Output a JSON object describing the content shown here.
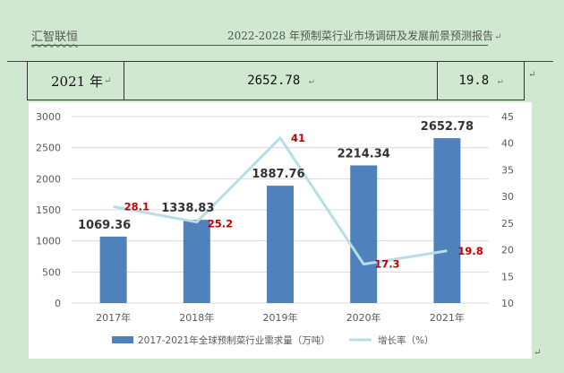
{
  "header": {
    "brand": "汇智联恒",
    "report_title": "2022-2028 年预制菜行业市场调研及发展前景预测报告",
    "para_mark": "↵"
  },
  "table": {
    "year": "2021 年",
    "volume": "2652.78",
    "rate": "19.8",
    "cell_mark": "↵",
    "row_end_mark": "↵"
  },
  "chart_data": {
    "type": "bar+line",
    "categories": [
      "2017年",
      "2018年",
      "2019年",
      "2020年",
      "2021年"
    ],
    "series": [
      {
        "name": "2017-2021年全球预制菜行业需求量（万吨）",
        "type": "bar",
        "axis": "left",
        "values": [
          1069.36,
          1338.83,
          1887.76,
          2214.34,
          2652.78
        ],
        "labels": [
          "1069.36",
          "1338.83",
          "1887.76",
          "2214.34",
          "2652.78"
        ],
        "color": "#4f81bd",
        "label_color": "#333333"
      },
      {
        "name": "增长率（%）",
        "type": "line",
        "axis": "right",
        "values": [
          28.1,
          25.2,
          41,
          17.3,
          19.8
        ],
        "labels": [
          "28.1",
          "25.2",
          "41",
          "17.3",
          "19.8"
        ],
        "color": "#b7dde8",
        "label_color": "#c00000"
      }
    ],
    "y_left": {
      "min": 0,
      "max": 3000,
      "ticks": [
        "0",
        "500",
        "1000",
        "1500",
        "2000",
        "2500",
        "3000"
      ]
    },
    "y_right": {
      "min": 10,
      "max": 45,
      "ticks": [
        "10",
        "15",
        "20",
        "25",
        "30",
        "35",
        "40",
        "45"
      ]
    },
    "grid": true,
    "legend_position": "bottom"
  }
}
